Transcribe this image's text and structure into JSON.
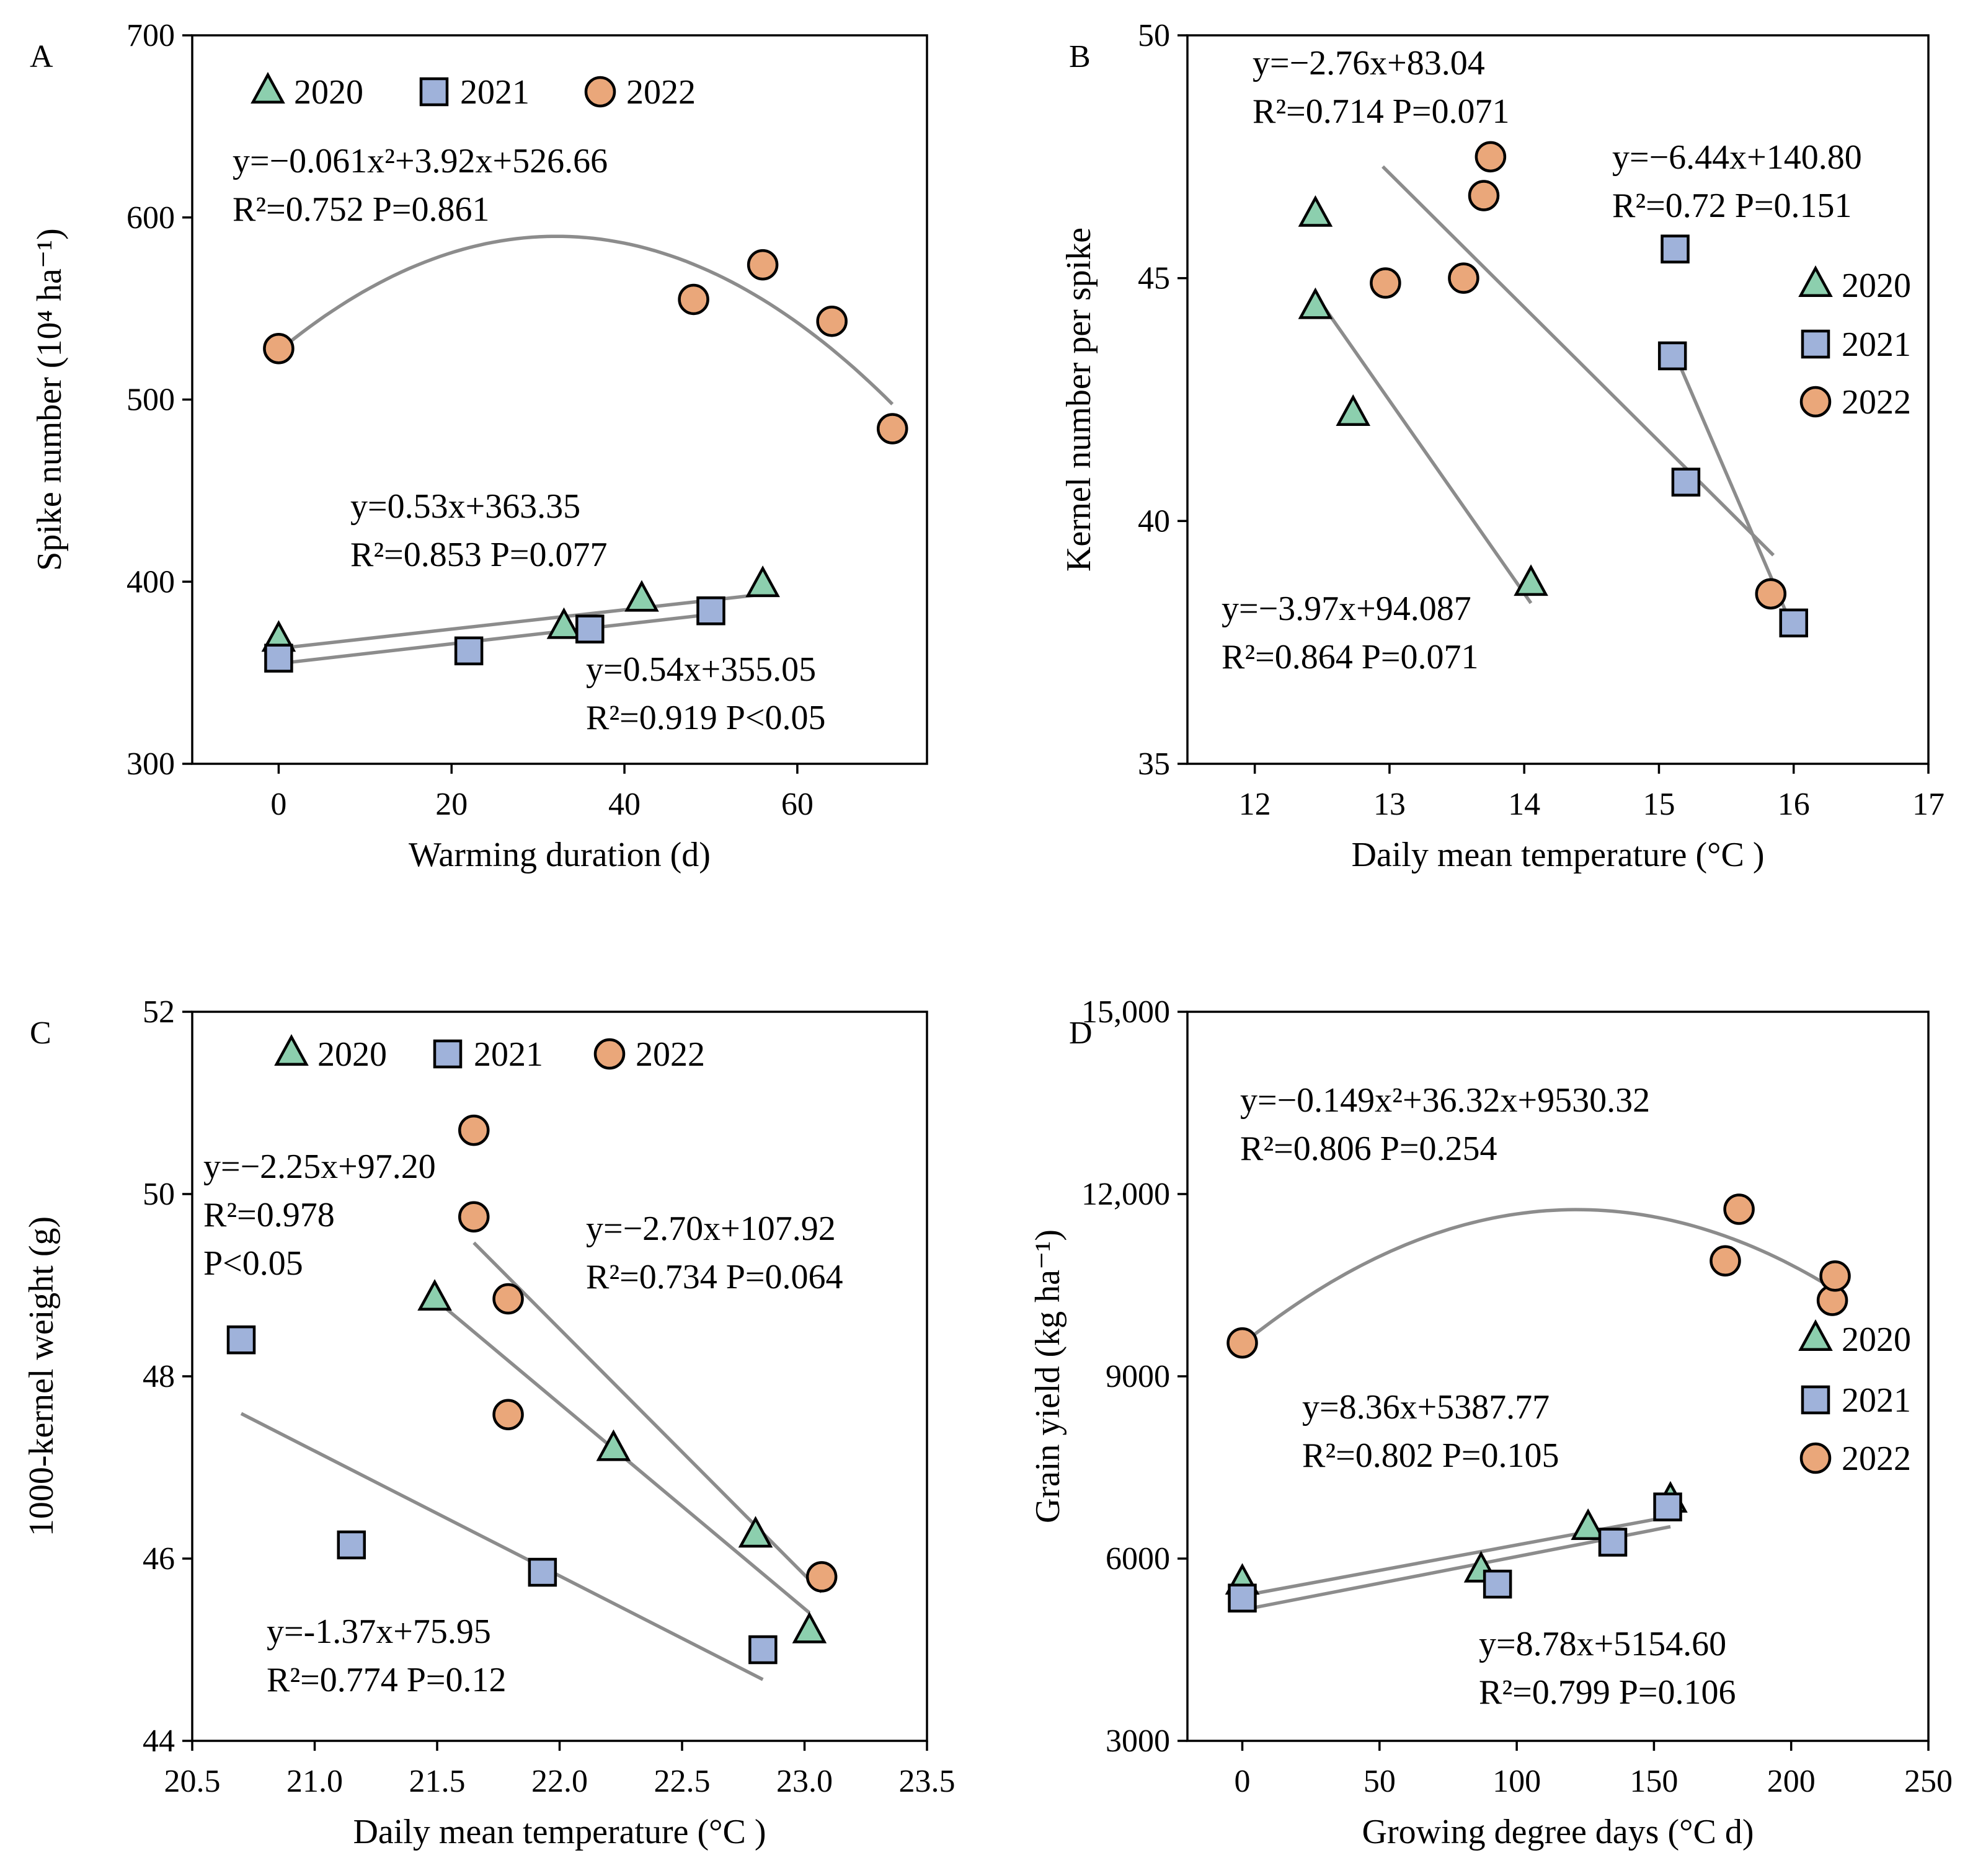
{
  "colors": {
    "2020": "#8ccfae",
    "2021": "#9fb2da",
    "2022": "#eaa77a",
    "fit_line": "#8c8c8c",
    "marker_stroke": "#000000"
  },
  "chart_data": [
    {
      "type": "scatter",
      "panel": "A",
      "xlabel": "Warming duration (d)",
      "ylabel": "Spike number (10⁴ ha⁻¹)",
      "xlim": [
        -10,
        75
      ],
      "ylim": [
        300,
        700
      ],
      "xticks": [
        0,
        20,
        40,
        60
      ],
      "yticks": [
        300,
        400,
        500,
        600,
        700
      ],
      "xtick_labels": [
        "0",
        "20",
        "40",
        "60"
      ],
      "ytick_labels": [
        "300",
        "400",
        "500",
        "600",
        "700"
      ],
      "legend": {
        "position": "top-left",
        "entries": [
          "2020",
          "2021",
          "2022"
        ]
      },
      "series": [
        {
          "name": "2020",
          "marker": "triangle",
          "points": [
            [
              0,
              368
            ],
            [
              33,
              375
            ],
            [
              42,
              390
            ],
            [
              56,
              398
            ]
          ]
        },
        {
          "name": "2021",
          "marker": "square",
          "points": [
            [
              0,
              358
            ],
            [
              22,
              362
            ],
            [
              36,
              374
            ],
            [
              50,
              384
            ]
          ]
        },
        {
          "name": "2022",
          "marker": "circle",
          "points": [
            [
              0,
              528
            ],
            [
              48,
              555
            ],
            [
              56,
              574
            ],
            [
              64,
              543
            ],
            [
              71,
              484
            ]
          ]
        }
      ],
      "fits": [
        {
          "series": "2022",
          "kind": "quadratic",
          "coef": [
            -0.061,
            3.92,
            526.66
          ],
          "xrange": [
            0,
            71
          ]
        },
        {
          "series": "2020",
          "kind": "linear",
          "coef": [
            0.53,
            363.35
          ],
          "xrange": [
            0,
            56
          ]
        },
        {
          "series": "2021",
          "kind": "linear",
          "coef": [
            0.54,
            355.05
          ],
          "xrange": [
            0,
            50
          ]
        }
      ],
      "annotations": [
        {
          "id": "a1",
          "line1": "y=−0.061x²+3.92x+526.66",
          "line2": "R²=0.752 P=0.861"
        },
        {
          "id": "a2",
          "line1": "y=0.53x+363.35",
          "line2": "R²=0.853 P=0.077"
        },
        {
          "id": "a3",
          "line1": "y=0.54x+355.05",
          "line2": "R²=0.919 P<0.05"
        }
      ]
    },
    {
      "type": "scatter",
      "panel": "B",
      "xlabel": "Daily mean temperature (°C )",
      "ylabel": "Kernel number per spike",
      "xlim": [
        11.5,
        17
      ],
      "ylim": [
        35,
        50
      ],
      "xticks": [
        12,
        13,
        14,
        15,
        16,
        17
      ],
      "yticks": [
        35,
        40,
        45,
        50
      ],
      "xtick_labels": [
        "12",
        "13",
        "14",
        "15",
        "16",
        "17"
      ],
      "ytick_labels": [
        "35",
        "40",
        "45",
        "50"
      ],
      "legend": {
        "position": "right",
        "entries": [
          "2020",
          "2021",
          "2022"
        ]
      },
      "series": [
        {
          "name": "2020",
          "marker": "triangle",
          "points": [
            [
              12.45,
              46.3
            ],
            [
              12.45,
              44.4
            ],
            [
              12.73,
              42.2
            ],
            [
              14.05,
              38.7
            ]
          ]
        },
        {
          "name": "2021",
          "marker": "square",
          "points": [
            [
              15.12,
              45.6
            ],
            [
              15.1,
              43.4
            ],
            [
              15.2,
              40.8
            ],
            [
              16.0,
              37.9
            ]
          ]
        },
        {
          "name": "2022",
          "marker": "circle",
          "points": [
            [
              12.97,
              44.9
            ],
            [
              13.55,
              45.0
            ],
            [
              13.7,
              46.7
            ],
            [
              13.75,
              47.5
            ],
            [
              15.83,
              38.5
            ]
          ]
        }
      ],
      "fits": [
        {
          "series": "2022",
          "kind": "linear",
          "coef": [
            -2.76,
            83.04
          ],
          "xrange": [
            12.95,
            15.85
          ]
        },
        {
          "series": "2021",
          "kind": "linear",
          "coef": [
            -6.44,
            140.8
          ],
          "xrange": [
            15.1,
            16.0
          ]
        },
        {
          "series": "2020",
          "kind": "linear",
          "coef": [
            -3.97,
            94.087
          ],
          "xrange": [
            12.45,
            14.05
          ]
        }
      ],
      "annotations": [
        {
          "id": "b1",
          "line1": "y=−2.76x+83.04",
          "line2": "R²=0.714 P=0.071"
        },
        {
          "id": "b2",
          "line1": "y=−6.44x+140.80",
          "line2": "R²=0.72 P=0.151"
        },
        {
          "id": "b3",
          "line1": "y=−3.97x+94.087",
          "line2": "R²=0.864 P=0.071"
        }
      ]
    },
    {
      "type": "scatter",
      "panel": "C",
      "xlabel": "Daily mean temperature (°C )",
      "ylabel": "1000-kernel weight (g)",
      "xlim": [
        20.5,
        23.5
      ],
      "ylim": [
        44,
        52
      ],
      "xticks": [
        20.5,
        21.0,
        21.5,
        22.0,
        22.5,
        23.0,
        23.5
      ],
      "yticks": [
        44,
        46,
        48,
        50,
        52
      ],
      "xtick_labels": [
        "20.5",
        "21.0",
        "21.5",
        "22.0",
        "22.5",
        "23.0",
        "23.5"
      ],
      "ytick_labels": [
        "44",
        "46",
        "48",
        "50",
        "52"
      ],
      "legend": {
        "position": "top",
        "entries": [
          "2020",
          "2021",
          "2022"
        ]
      },
      "series": [
        {
          "name": "2020",
          "marker": "triangle",
          "points": [
            [
              21.49,
              48.85
            ],
            [
              22.22,
              47.2
            ],
            [
              22.8,
              46.25
            ],
            [
              23.02,
              45.2
            ]
          ]
        },
        {
          "name": "2021",
          "marker": "square",
          "points": [
            [
              20.7,
              48.4
            ],
            [
              21.15,
              46.15
            ],
            [
              21.93,
              45.85
            ],
            [
              22.83,
              45.0
            ]
          ]
        },
        {
          "name": "2022",
          "marker": "circle",
          "points": [
            [
              21.65,
              50.7
            ],
            [
              21.65,
              49.75
            ],
            [
              21.79,
              48.85
            ],
            [
              21.79,
              47.58
            ],
            [
              23.07,
              45.8
            ]
          ]
        }
      ],
      "fits": [
        {
          "series": "2020",
          "kind": "linear",
          "coef": [
            -2.25,
            97.2
          ],
          "xrange": [
            21.5,
            23.02
          ]
        },
        {
          "series": "2022",
          "kind": "linear",
          "coef": [
            -2.7,
            107.92
          ],
          "xrange": [
            21.65,
            23.07
          ]
        },
        {
          "series": "2021",
          "kind": "linear",
          "coef": [
            -1.37,
            75.95
          ],
          "xrange": [
            20.7,
            22.83
          ]
        }
      ],
      "annotations": [
        {
          "id": "c1",
          "line1": "y=−2.25x+97.20",
          "line2": "R²=0.978",
          "line3": "P<0.05"
        },
        {
          "id": "c2",
          "line1": "y=−2.70x+107.92",
          "line2": "R²=0.734 P=0.064"
        },
        {
          "id": "c3",
          "line1": "y=-1.37x+75.95",
          "line2": "R²=0.774 P=0.12"
        }
      ]
    },
    {
      "type": "scatter",
      "panel": "D",
      "xlabel": "Growing degree days (°C d)",
      "ylabel": "Grain yield (kg ha⁻¹)",
      "xlim": [
        -20,
        250
      ],
      "ylim": [
        3000,
        15000
      ],
      "xticks": [
        0,
        50,
        100,
        150,
        200,
        250
      ],
      "yticks": [
        3000,
        6000,
        9000,
        12000,
        15000
      ],
      "xtick_labels": [
        "0",
        "50",
        "100",
        "150",
        "200",
        "250"
      ],
      "ytick_labels": [
        "3000",
        "6000",
        "9000",
        "12,000",
        "15,000"
      ],
      "legend": {
        "position": "right",
        "entries": [
          "2020",
          "2021",
          "2022"
        ]
      },
      "series": [
        {
          "name": "2020",
          "marker": "triangle",
          "points": [
            [
              0,
              5600
            ],
            [
              87,
              5800
            ],
            [
              126,
              6500
            ],
            [
              156,
              6950
            ]
          ]
        },
        {
          "name": "2021",
          "marker": "square",
          "points": [
            [
              0,
              5350
            ],
            [
              93,
              5580
            ],
            [
              135,
              6270
            ],
            [
              155,
              6850
            ]
          ]
        },
        {
          "name": "2022",
          "marker": "circle",
          "points": [
            [
              0,
              9550
            ],
            [
              176,
              10900
            ],
            [
              181,
              11750
            ],
            [
              215,
              10250
            ],
            [
              216,
              10650
            ]
          ]
        }
      ],
      "fits": [
        {
          "series": "2022",
          "kind": "quadratic",
          "coef": [
            -0.149,
            36.32,
            9530.32
          ],
          "xrange": [
            0,
            216
          ]
        },
        {
          "series": "2020",
          "kind": "linear",
          "coef": [
            8.36,
            5387.77
          ],
          "xrange": [
            0,
            156
          ]
        },
        {
          "series": "2021",
          "kind": "linear",
          "coef": [
            8.78,
            5154.6
          ],
          "xrange": [
            0,
            156
          ]
        }
      ],
      "annotations": [
        {
          "id": "d1",
          "line1": "y=−0.149x²+36.32x+9530.32",
          "line2": "R²=0.806 P=0.254"
        },
        {
          "id": "d2",
          "line1": "y=8.36x+5387.77",
          "line2": "R²=0.802 P=0.105"
        },
        {
          "id": "d3",
          "line1": "y=8.78x+5154.60",
          "line2": "R²=0.799 P=0.106"
        }
      ]
    }
  ]
}
